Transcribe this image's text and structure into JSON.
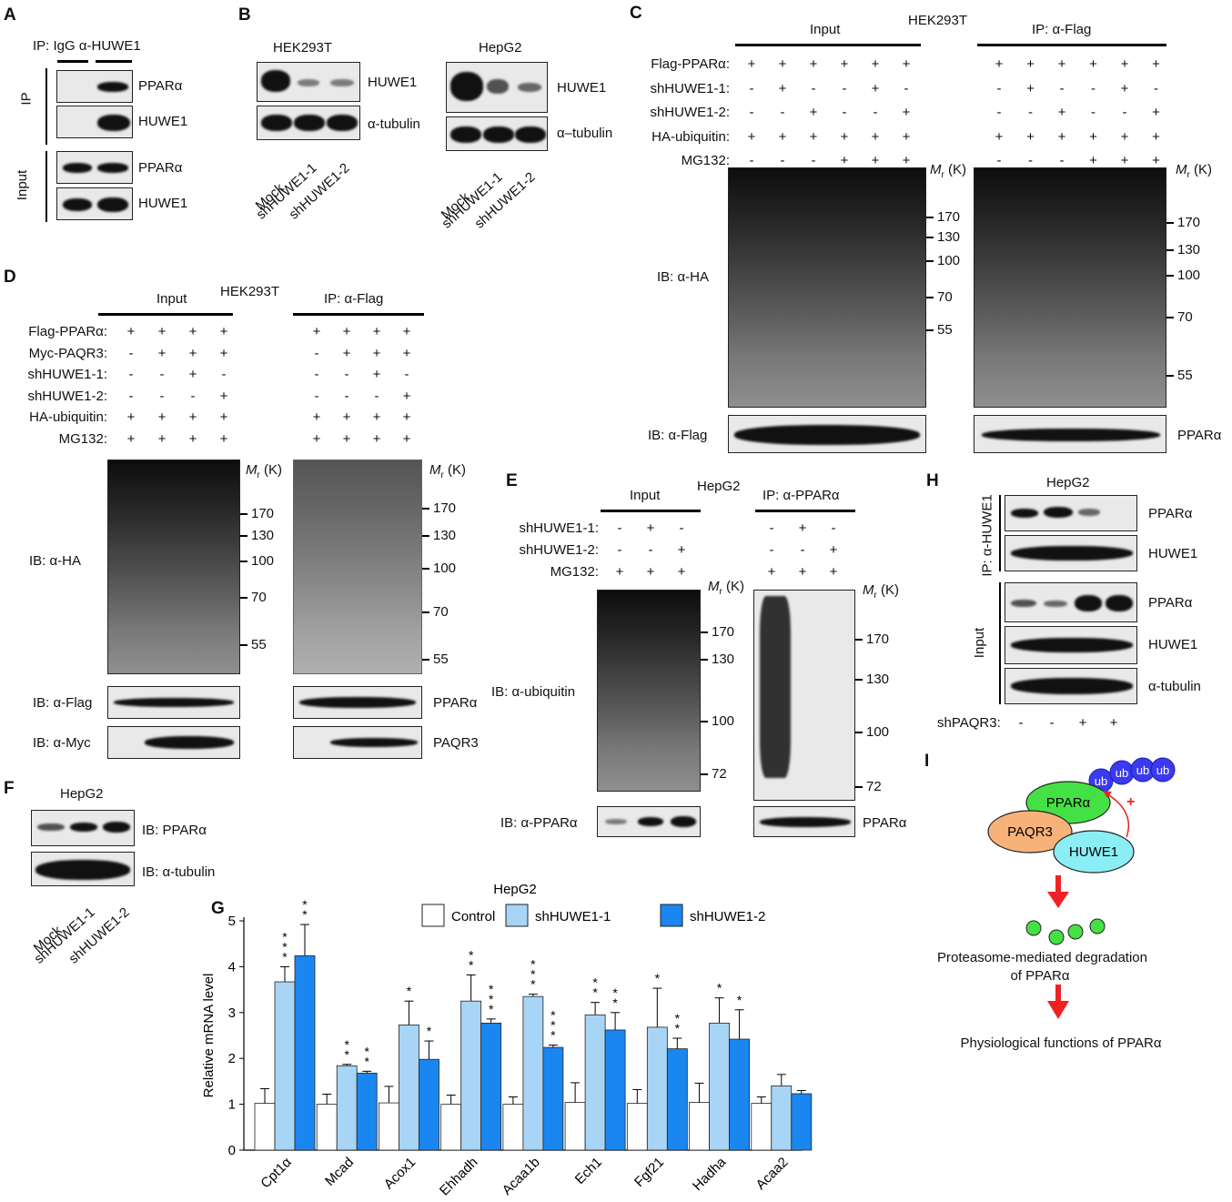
{
  "panel_letters": {
    "a": "A",
    "b": "B",
    "c": "C",
    "d": "D",
    "e": "E",
    "f": "F",
    "g": "G",
    "h": "H",
    "i": "I"
  },
  "panelA": {
    "ip_header": "IP: IgG α-HUWE1",
    "section_ip": "IP",
    "section_input": "Input",
    "rows": [
      "PPARα",
      "HUWE1",
      "PPARα",
      "HUWE1"
    ]
  },
  "panelB": {
    "cell1": "HEK293T",
    "cell2": "HepG2",
    "rows1": [
      "HUWE1",
      "α-tubulin"
    ],
    "rows2": [
      "HUWE1",
      "α–tubulin"
    ],
    "lanes": [
      "Mock",
      "shHUWE1-1",
      "shHUWE1-2"
    ]
  },
  "panelC": {
    "input_header": "Input",
    "cell": "HEK293T",
    "ip_header": "IP: α-Flag",
    "conditions": [
      {
        "label": "Flag-PPARα:",
        "marks": [
          "+",
          "+",
          "+",
          "+",
          "+",
          "+"
        ]
      },
      {
        "label": "shHUWE1-1:",
        "marks": [
          "-",
          "+",
          "-",
          "-",
          "+",
          "-"
        ]
      },
      {
        "label": "shHUWE1-2:",
        "marks": [
          "-",
          "-",
          "+",
          "-",
          "-",
          "+"
        ]
      },
      {
        "label": "HA-ubiquitin:",
        "marks": [
          "+",
          "+",
          "+",
          "+",
          "+",
          "+"
        ]
      },
      {
        "label": "MG132:",
        "marks": [
          "-",
          "-",
          "-",
          "+",
          "+",
          "+"
        ]
      }
    ],
    "mr": "M",
    "mr_sub": "r",
    "mr_unit": " (K)",
    "markers_input": [
      "170",
      "130",
      "100",
      "70",
      "55"
    ],
    "markers_ip": [
      "170",
      "130",
      "100",
      "70",
      "55"
    ],
    "ib_ha": "IB: α-HA",
    "ib_flag": "IB: α-Flag",
    "ip_flag_row": "PPARα"
  },
  "panelD": {
    "input_header": "Input",
    "cell": "HEK293T",
    "ip_header": "IP: α-Flag",
    "conditions": [
      {
        "label": "Flag-PPARα:",
        "marks": [
          "+",
          "+",
          "+",
          "+"
        ]
      },
      {
        "label": "Myc-PAQR3:",
        "marks": [
          "-",
          "+",
          "+",
          "+"
        ]
      },
      {
        "label": "shHUWE1-1:",
        "marks": [
          "-",
          "-",
          "+",
          "-"
        ]
      },
      {
        "label": "shHUWE1-2:",
        "marks": [
          "-",
          "-",
          "-",
          "+"
        ]
      },
      {
        "label": "HA-ubiquitin:",
        "marks": [
          "+",
          "+",
          "+",
          "+"
        ]
      },
      {
        "label": "MG132:",
        "marks": [
          "+",
          "+",
          "+",
          "+"
        ]
      }
    ],
    "mr": "M",
    "mr_sub": "r",
    "mr_unit": " (K)",
    "markers_input": [
      "170",
      "130",
      "100",
      "70",
      "55"
    ],
    "markers_ip": [
      "170",
      "130",
      "100",
      "70",
      "55"
    ],
    "ib_ha": "IB: α-HA",
    "ib_flag": "IB: α-Flag",
    "ib_myc": "IB: α-Myc",
    "ip_rows": [
      "PPARα",
      "PAQR3"
    ]
  },
  "panelE": {
    "input_header": "Input",
    "cell": "HepG2",
    "ip_header": "IP: α-PPARα",
    "conditions": [
      {
        "label": "shHUWE1-1:",
        "marks": [
          "-",
          "+",
          "-"
        ]
      },
      {
        "label": "shHUWE1-2:",
        "marks": [
          "-",
          "-",
          "+"
        ]
      },
      {
        "label": "MG132:",
        "marks": [
          "+",
          "+",
          "+"
        ]
      }
    ],
    "mr": "M",
    "mr_sub": "r",
    "mr_unit": " (K)",
    "markers_input": [
      "170",
      "130",
      "100",
      "72"
    ],
    "markers_ip": [
      "170",
      "130",
      "100",
      "72"
    ],
    "ib_ub": "IB: α-ubiquitin",
    "ib_ppar": "IB: α-PPARα",
    "ip_row": "PPARα"
  },
  "panelF": {
    "cell": "HepG2",
    "rows": [
      "IB: PPARα",
      "IB: α-tubulin"
    ],
    "lanes": [
      "Mock",
      "shHUWE1-1",
      "shHUWE1-2"
    ]
  },
  "panelH": {
    "cell": "HepG2",
    "section_ip": "IP: α-HUWE1",
    "section_input": "Input",
    "rows": [
      "PPARα",
      "HUWE1",
      "PPARα",
      "HUWE1",
      "α-tubulin"
    ],
    "cond_label": "shPAQR3:",
    "marks": [
      "-",
      "-",
      "+",
      "+"
    ]
  },
  "panelI": {
    "ub": [
      "ub",
      "ub",
      "ub",
      "ub"
    ],
    "ppar": "PPARα",
    "paqr3": "PAQR3",
    "huwe1": "HUWE1",
    "plus": "+",
    "step1": "Proteasome-mediated degradation",
    "step1b": "of PPARα",
    "step2": "Physiological functions of PPARα",
    "colors": {
      "ppar": "#44e144",
      "paqr3": "#f7b27a",
      "huwe1": "#8ceef5",
      "ub": "#3a3af0",
      "arrow": "#ee2222"
    }
  },
  "chart_data": {
    "type": "bar",
    "title": "HepG2",
    "ylabel": "Relative mRNA level",
    "xlabel": "",
    "ylim": [
      0,
      5
    ],
    "yticks": [
      0,
      1,
      2,
      3,
      4,
      5
    ],
    "legend_position": "top",
    "categories": [
      "Cpt1α",
      "Mcad",
      "Acox1",
      "Ehhadh",
      "Acaa1b",
      "Ech1",
      "Fgf21",
      "Hadha",
      "Acaa2"
    ],
    "series": [
      {
        "name": "Control",
        "color": "#ffffff",
        "values": [
          1.02,
          1.0,
          1.03,
          1.0,
          1.0,
          1.04,
          1.02,
          1.04,
          1.02
        ],
        "errors": [
          0.32,
          0.22,
          0.36,
          0.2,
          0.16,
          0.43,
          0.3,
          0.42,
          0.14
        ]
      },
      {
        "name": "shHUWE1-1",
        "color": "#a8d4f5",
        "values": [
          3.67,
          1.84,
          2.73,
          3.25,
          3.35,
          2.95,
          2.68,
          2.77,
          1.4
        ],
        "errors": [
          0.33,
          0.03,
          0.52,
          0.57,
          0.05,
          0.27,
          0.85,
          0.55,
          0.25
        ]
      },
      {
        "name": "shHUWE1-2",
        "color": "#1a86f0",
        "values": [
          4.24,
          1.68,
          1.98,
          2.77,
          2.24,
          2.62,
          2.21,
          2.42,
          1.23
        ],
        "errors": [
          0.68,
          0.04,
          0.4,
          0.09,
          0.05,
          0.38,
          0.23,
          0.64,
          0.07
        ]
      }
    ],
    "significance": [
      [
        "",
        "***",
        "**"
      ],
      [
        "",
        "**",
        "**"
      ],
      [
        "",
        "*",
        "*"
      ],
      [
        "",
        "**",
        "***"
      ],
      [
        "",
        "***",
        "***"
      ],
      [
        "",
        "**",
        "**"
      ],
      [
        "",
        "*",
        "**"
      ],
      [
        "",
        "*",
        "*"
      ],
      [
        "",
        "",
        ""
      ]
    ]
  }
}
